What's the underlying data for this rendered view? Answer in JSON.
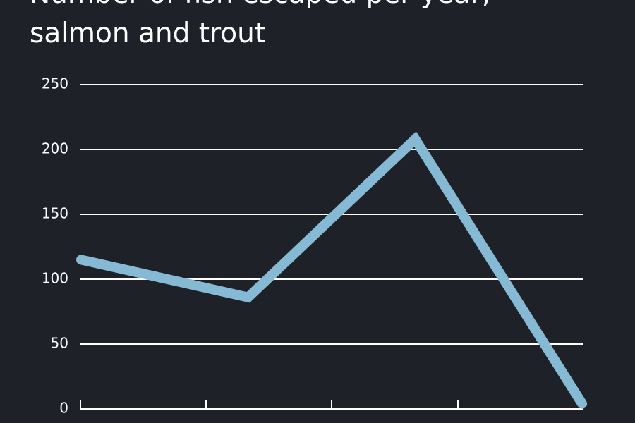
{
  "chart_data": {
    "type": "line",
    "title": "Number of fish escaped per year, salmon and trout",
    "categories": [
      null,
      null,
      null,
      null
    ],
    "series": [
      {
        "color": "#86b9d4",
        "values": [
          115,
          86,
          208,
          4
        ]
      }
    ],
    "ylim": [
      0,
      250
    ],
    "yticks": [
      0,
      50,
      100,
      150,
      200,
      250
    ],
    "grid": true
  }
}
